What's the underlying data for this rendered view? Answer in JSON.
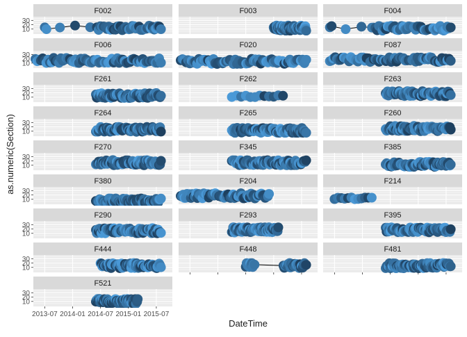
{
  "chart_data": {
    "type": "scatter",
    "layout": "faceted small multiples, 3 columns x 9 rows",
    "xlabel": "DateTime",
    "ylabel": "as.numeric(Section)",
    "x_ticks": [
      "2013-07",
      "2014-01",
      "2014-07",
      "2015-01",
      "2015-07"
    ],
    "y_ticks": [
      10,
      20,
      30
    ],
    "x_range": [
      "2013-05",
      "2015-10"
    ],
    "y_range": [
      0,
      37
    ],
    "point_color_light": "#56B1F7",
    "point_color_dark": "#132B43",
    "line_color": "#000000",
    "strip_color": "#D9D9D9",
    "panel_color": "#EBEBEB",
    "grid": true,
    "legend": "none",
    "facets": [
      {
        "label": "F002",
        "start": "2013-07",
        "end": "2015-08",
        "gap_end": "2014-06",
        "mean": 12
      },
      {
        "label": "F003",
        "start": "2015-01",
        "end": "2015-08",
        "mean": 12
      },
      {
        "label": "F004",
        "start": "2013-06",
        "end": "2015-08",
        "gap_end": "2014-03",
        "mean": 12
      },
      {
        "label": "F006",
        "start": "2013-05",
        "end": "2015-08",
        "mean": 16
      },
      {
        "label": "F020",
        "start": "2013-05",
        "end": "2015-08",
        "mean": 14
      },
      {
        "label": "F087",
        "start": "2013-06",
        "end": "2015-08",
        "mean": 18
      },
      {
        "label": "F261",
        "start": "2014-06",
        "end": "2015-08",
        "mean": 14
      },
      {
        "label": "F262",
        "start": "2014-04",
        "end": "2015-03",
        "mean": 12,
        "sparse": true
      },
      {
        "label": "F263",
        "start": "2014-06",
        "end": "2015-08",
        "mean": 18
      },
      {
        "label": "F264",
        "start": "2014-06",
        "end": "2015-08",
        "mean": 14
      },
      {
        "label": "F265",
        "start": "2014-04",
        "end": "2015-08",
        "mean": 12
      },
      {
        "label": "F260",
        "start": "2014-06",
        "end": "2015-08",
        "mean": 16
      },
      {
        "label": "F270",
        "start": "2014-06",
        "end": "2015-08",
        "mean": 16
      },
      {
        "label": "F345",
        "start": "2014-04",
        "end": "2015-08",
        "mean": 16
      },
      {
        "label": "F385",
        "start": "2014-06",
        "end": "2015-08",
        "mean": 12
      },
      {
        "label": "F380",
        "start": "2014-06",
        "end": "2015-08",
        "mean": 6
      },
      {
        "label": "F204",
        "start": "2013-05",
        "end": "2014-12",
        "mean": 18
      },
      {
        "label": "F214",
        "start": "2013-07",
        "end": "2014-03",
        "mean": 12,
        "sparse": true
      },
      {
        "label": "F290",
        "start": "2014-06",
        "end": "2015-08",
        "mean": 16
      },
      {
        "label": "F293",
        "start": "2014-04",
        "end": "2015-02",
        "mean": 18
      },
      {
        "label": "F395",
        "start": "2014-06",
        "end": "2015-08",
        "mean": 18
      },
      {
        "label": "F444",
        "start": "2014-07",
        "end": "2015-08",
        "mean": 14
      },
      {
        "label": "F448",
        "start": "2014-07",
        "end": "2015-08",
        "gap_start": "2014-09",
        "gap_end": "2015-03",
        "mean": 14
      },
      {
        "label": "F481",
        "start": "2014-06",
        "end": "2015-08",
        "mean": 14
      },
      {
        "label": "F521",
        "start": "2014-06",
        "end": "2015-03",
        "mean": 10
      }
    ]
  }
}
